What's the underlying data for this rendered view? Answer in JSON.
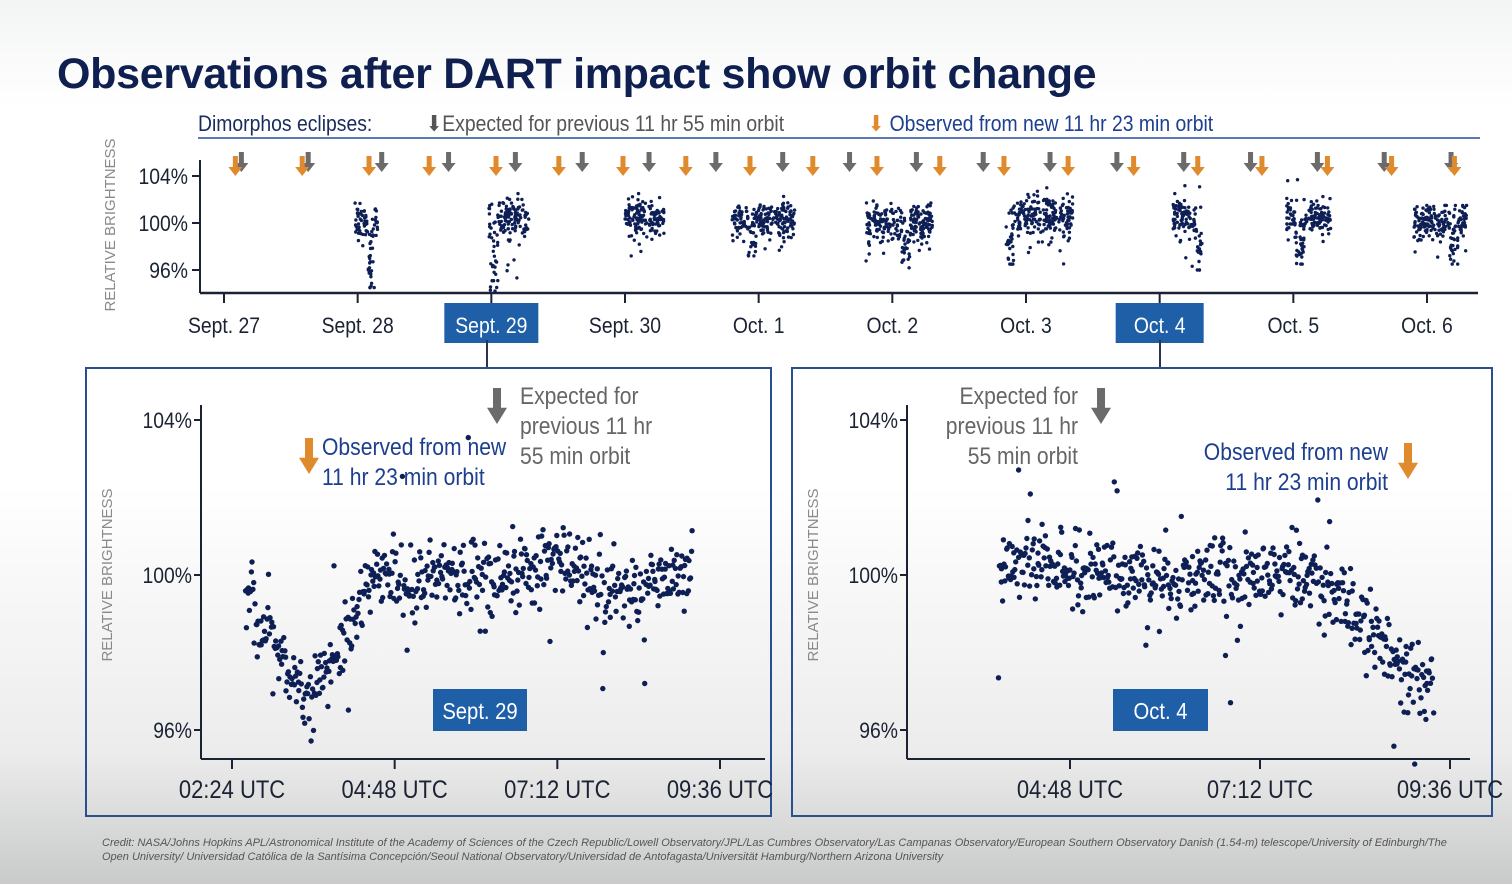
{
  "title": "Observations after DART impact show orbit change",
  "legend": {
    "label": "Dimorphos eclipses:",
    "expected": "Expected for previous 11 hr 55 min orbit",
    "observed": "Observed from new 11 hr 23 min orbit",
    "expected_color": "#6b6b6b",
    "observed_color": "#e08a2e"
  },
  "colors": {
    "points": "#0d1f55",
    "axis": "#1a2233",
    "highlight": "#1f5fa8",
    "frame": "#2a4f8f"
  },
  "credit": "Credit: NASA/Johns Hopkins APL/Astronomical Institute of the Academy of Sciences of the Czech Republic/Lowell Observatory/JPL/Las Cumbres Observatory/Las Campanas Observatory/European Southern Observatory Danish (1.54-m) telescope/University of Edinburgh/The Open University/ Universidad Católica de la Santísima Concepción/Seoul National Observatory/Universidad de Antofagasta/Universität Hamburg/Northern Arizona University",
  "chart_data": [
    {
      "id": "overview",
      "type": "scatter",
      "title": "",
      "ylabel": "RELATIVE BRIGHTNESS",
      "xlabel": "",
      "ylim": [
        93,
        105
      ],
      "yticks": [
        104,
        100,
        96
      ],
      "ytick_labels": [
        "104%",
        "100%",
        "96%"
      ],
      "x_unit": "days since Sept. 27 00:00",
      "xlim": [
        -0.2,
        9.4
      ],
      "xticks": [
        0,
        1,
        2,
        3,
        4,
        5,
        6,
        7,
        8,
        9
      ],
      "xtick_labels": [
        "Sept. 27",
        "Sept. 28",
        "Sept. 29",
        "Sept. 30",
        "Oct. 1",
        "Oct. 2",
        "Oct. 3",
        "Oct. 4",
        "Oct. 5",
        "Oct. 6"
      ],
      "highlighted_ticks": [
        "Sept. 29",
        "Oct. 4"
      ],
      "expected_eclipses": [
        0.1,
        0.6,
        1.15,
        1.65,
        2.15,
        2.65,
        3.15,
        3.65,
        4.15,
        4.65,
        5.15,
        5.65,
        6.15,
        6.65,
        7.15,
        7.65,
        8.15,
        8.65,
        9.15
      ],
      "observed_eclipses": [
        0.1,
        0.6,
        1.1,
        1.55,
        2.05,
        2.52,
        3.0,
        3.47,
        3.95,
        4.42,
        4.9,
        5.37,
        5.85,
        6.33,
        6.82,
        7.3,
        7.78,
        8.27,
        8.75,
        9.22
      ],
      "segments": [
        {
          "x_start": 0.98,
          "x_end": 1.15,
          "y_center": 100.0,
          "y_min": 94.5,
          "y_max": 103.0,
          "dip_at": 1.1
        },
        {
          "x_start": 1.98,
          "x_end": 2.28,
          "y_center": 100.5,
          "y_min": 94.2,
          "y_max": 102.5,
          "dip_at": 2.02
        },
        {
          "x_start": 3.0,
          "x_end": 3.3,
          "y_center": 100.3,
          "y_min": 97.0,
          "y_max": 102.5,
          "dip_at": null
        },
        {
          "x_start": 3.8,
          "x_end": 4.27,
          "y_center": 100.2,
          "y_min": 97.2,
          "y_max": 103.0,
          "dip_at": 3.95
        },
        {
          "x_start": 4.8,
          "x_end": 5.3,
          "y_center": 100.0,
          "y_min": 96.0,
          "y_max": 102.5,
          "dip_at": 5.1
        },
        {
          "x_start": 5.85,
          "x_end": 6.35,
          "y_center": 100.5,
          "y_min": 96.5,
          "y_max": 103.0,
          "dip_at": 5.88
        },
        {
          "x_start": 7.1,
          "x_end": 7.32,
          "y_center": 100.5,
          "y_min": 96.0,
          "y_max": 103.2,
          "dip_at": 7.3
        },
        {
          "x_start": 7.95,
          "x_end": 8.28,
          "y_center": 100.5,
          "y_min": 96.5,
          "y_max": 104.0,
          "dip_at": 8.05
        },
        {
          "x_start": 8.9,
          "x_end": 9.3,
          "y_center": 100.0,
          "y_min": 96.5,
          "y_max": 101.5,
          "dip_at": 9.2
        }
      ]
    },
    {
      "id": "sept29",
      "type": "scatter",
      "label": "Sept. 29",
      "ylabel": "RELATIVE BRIGHTNESS",
      "ylim": [
        95,
        104.5
      ],
      "yticks": [
        104,
        100,
        96
      ],
      "ytick_labels": [
        "104%",
        "100%",
        "96%"
      ],
      "xlim_utc_hours": [
        2.1,
        9.9
      ],
      "xticks_hours": [
        2.4,
        4.8,
        7.2,
        9.6
      ],
      "xtick_labels": [
        "02:24 UTC",
        "04:48 UTC",
        "07:12 UTC",
        "09:36 UTC"
      ],
      "data_range_hours": [
        2.6,
        9.2
      ],
      "observed_eclipse_hour": 3.5,
      "expected_eclipse_hour": 6.0,
      "observed_annotation": [
        "Observed from new",
        "11 hr 23 min orbit"
      ],
      "expected_annotation": [
        "Expected for",
        "previous 11 hr",
        "55 min orbit"
      ],
      "profile": [
        {
          "t": 2.6,
          "y": 99.5
        },
        {
          "t": 3.0,
          "y": 98.5
        },
        {
          "t": 3.5,
          "y": 96.7
        },
        {
          "t": 3.8,
          "y": 97.5
        },
        {
          "t": 4.2,
          "y": 99.0
        },
        {
          "t": 4.6,
          "y": 100.3
        },
        {
          "t": 5.0,
          "y": 99.6
        },
        {
          "t": 5.5,
          "y": 100.1
        },
        {
          "t": 6.5,
          "y": 100.0
        },
        {
          "t": 7.3,
          "y": 100.4
        },
        {
          "t": 7.8,
          "y": 99.5
        },
        {
          "t": 8.4,
          "y": 99.6
        },
        {
          "t": 9.2,
          "y": 100.2
        }
      ],
      "scatter_sd_pct": 0.6
    },
    {
      "id": "oct4",
      "type": "scatter",
      "label": "Oct. 4",
      "ylabel": "RELATIVE BRIGHTNESS",
      "ylim": [
        95,
        104.5
      ],
      "yticks": [
        104,
        100,
        96
      ],
      "ytick_labels": [
        "104%",
        "100%",
        "96%"
      ],
      "xlim_utc_hours": [
        2.5,
        10.0
      ],
      "xticks_hours": [
        4.8,
        7.2,
        9.6
      ],
      "xtick_labels": [
        "04:48 UTC",
        "07:12 UTC",
        "09:36 UTC"
      ],
      "data_range_hours": [
        3.9,
        9.4
      ],
      "observed_eclipse_hour": 9.4,
      "expected_eclipse_hour": 5.0,
      "observed_annotation": [
        "Observed from new",
        "11 hr 23 min orbit"
      ],
      "expected_annotation": [
        "Expected for",
        "previous 11 hr",
        "55 min orbit"
      ],
      "profile": [
        {
          "t": 3.9,
          "y": 100.3
        },
        {
          "t": 5.0,
          "y": 100.1
        },
        {
          "t": 6.0,
          "y": 100.0
        },
        {
          "t": 7.0,
          "y": 100.0
        },
        {
          "t": 7.9,
          "y": 100.1
        },
        {
          "t": 8.4,
          "y": 99.0
        },
        {
          "t": 8.9,
          "y": 97.9
        },
        {
          "t": 9.4,
          "y": 97.0
        }
      ],
      "scatter_sd_pct": 0.6
    }
  ]
}
